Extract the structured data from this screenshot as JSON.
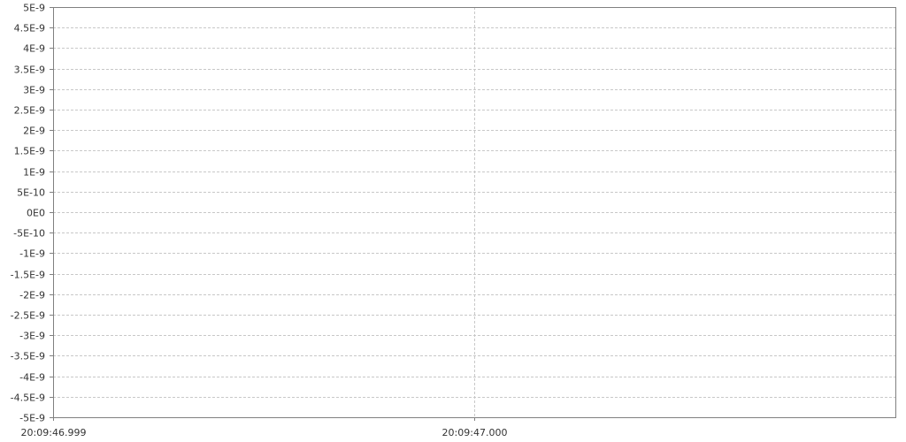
{
  "chart_data": {
    "type": "line",
    "title": "",
    "xlabel": "",
    "ylabel": "",
    "y_ticks": [
      "5E-9",
      "4.5E-9",
      "4E-9",
      "3.5E-9",
      "3E-9",
      "2.5E-9",
      "2E-9",
      "1.5E-9",
      "1E-9",
      "5E-10",
      "0E0",
      "-5E-10",
      "-1E-9",
      "-1.5E-9",
      "-2E-9",
      "-2.5E-9",
      "-3E-9",
      "-3.5E-9",
      "-4E-9",
      "-4.5E-9",
      "-5E-9"
    ],
    "y_tick_values": [
      5e-09,
      4.5e-09,
      4e-09,
      3.5e-09,
      3e-09,
      2.5e-09,
      2e-09,
      1.5e-09,
      1e-09,
      5e-10,
      0,
      -5e-10,
      -1e-09,
      -1.5e-09,
      -2e-09,
      -2.5e-09,
      -3e-09,
      -3.5e-09,
      -4e-09,
      -4.5e-09,
      -5e-09
    ],
    "ylim": [
      -5e-09,
      5e-09
    ],
    "x_ticks": [
      "20:09:46.999",
      "20:09:47.000"
    ],
    "x_tick_values": [
      "20:09:46.999",
      "20:09:47.000"
    ],
    "xlim": [
      "20:09:46.999",
      "20:09:47.001"
    ],
    "grid": true,
    "series": []
  },
  "colors": {
    "background": "#ffffff",
    "gridline": "#c8c8c8",
    "axis": "#808080",
    "tick_text": "#333333"
  }
}
